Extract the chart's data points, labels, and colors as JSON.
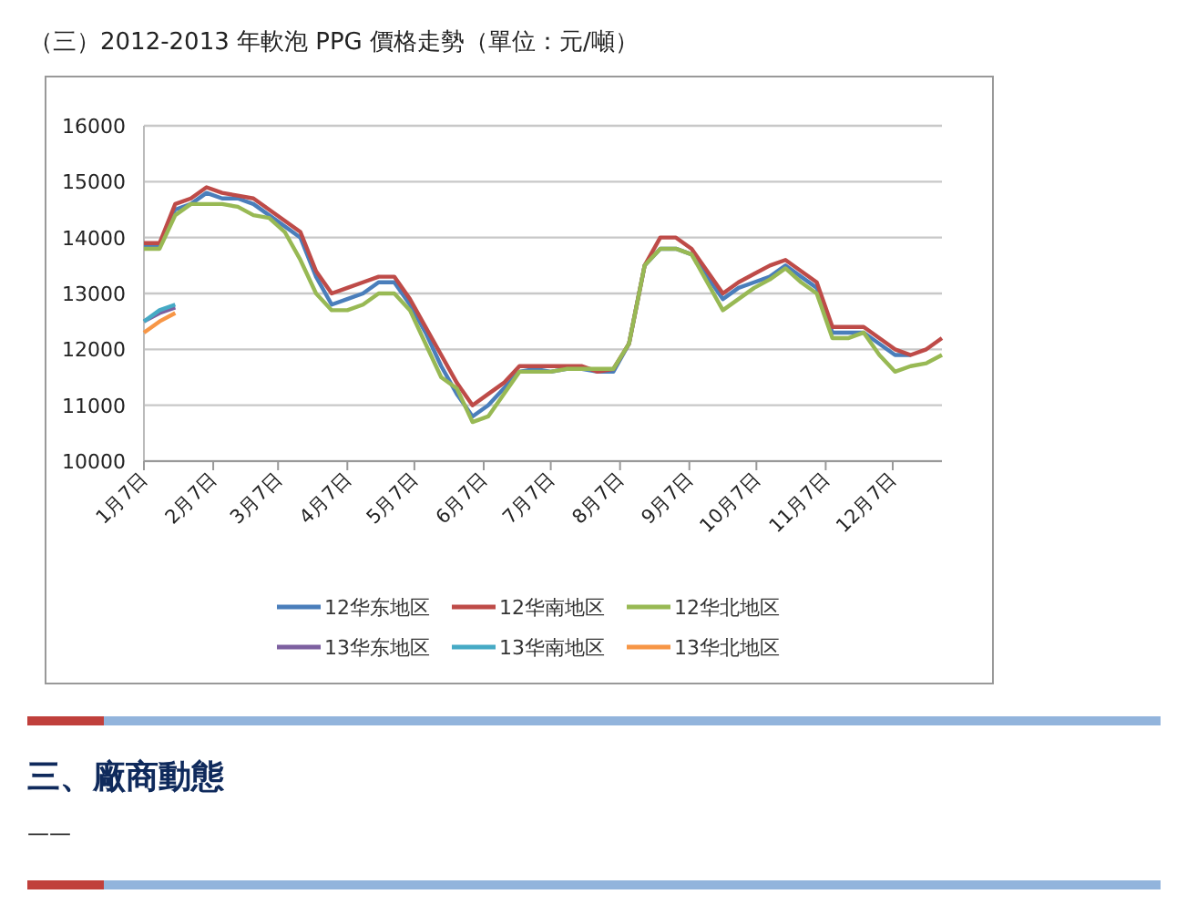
{
  "chart_data": {
    "type": "line",
    "title": "（三）2012-2013 年軟泡 PPG 價格走勢（單位：元/噸）",
    "x": [
      "--01-07",
      "--01-14",
      "--01-21",
      "--01-28",
      "--02-04",
      "--02-11",
      "--02-18",
      "--02-25",
      "--03-03",
      "--03-10",
      "--03-17",
      "--03-24",
      "--03-31",
      "--04-07",
      "--04-14",
      "--04-21",
      "--04-28",
      "--05-05",
      "--05-12",
      "--05-19",
      "--05-26",
      "--06-02",
      "--06-09",
      "--06-16",
      "--06-23",
      "--06-30",
      "--07-07",
      "--07-14",
      "--07-21",
      "--07-28",
      "--08-04",
      "--08-11",
      "--08-18",
      "--08-25",
      "--09-01",
      "--09-08",
      "--09-15",
      "--09-22",
      "--09-29",
      "--10-06",
      "--10-13",
      "--10-20",
      "--10-27",
      "--11-03",
      "--11-10",
      "--11-17",
      "--11-24",
      "--12-01",
      "--12-08",
      "--12-15",
      "--12-22",
      "--12-29"
    ],
    "xlim": [
      "--01-07",
      "--12-29"
    ],
    "xticks": [
      {
        "value": "--01-07",
        "label": "1月7日"
      },
      {
        "value": "--02-07",
        "label": "2月7日"
      },
      {
        "value": "--03-07",
        "label": "3月7日"
      },
      {
        "value": "--04-07",
        "label": "4月7日"
      },
      {
        "value": "--05-07",
        "label": "5月7日"
      },
      {
        "value": "--06-07",
        "label": "6月7日"
      },
      {
        "value": "--07-07",
        "label": "7月7日"
      },
      {
        "value": "--08-07",
        "label": "8月7日"
      },
      {
        "value": "--09-07",
        "label": "9月7日"
      },
      {
        "value": "--10-07",
        "label": "10月7日"
      },
      {
        "value": "--11-07",
        "label": "11月7日"
      },
      {
        "value": "--12-07",
        "label": "12月7日"
      }
    ],
    "ylim": [
      10000,
      16000
    ],
    "yticks": [
      10000,
      11000,
      12000,
      13000,
      14000,
      15000,
      16000
    ],
    "grid": "y",
    "legend": "bottom",
    "marker": "none",
    "line_style": "solid",
    "series": [
      {
        "name": "12华东地区",
        "color": "#4a7ebb",
        "values": [
          13850,
          13850,
          14500,
          14600,
          14800,
          14700,
          14700,
          14600,
          14400,
          14200,
          14000,
          13300,
          12800,
          12900,
          13000,
          13200,
          13200,
          12800,
          12300,
          11700,
          11200,
          10800,
          11000,
          11300,
          11600,
          11650,
          11600,
          11650,
          11650,
          11600,
          11600,
          12100,
          13500,
          13800,
          13800,
          13700,
          13300,
          12900,
          13100,
          13200,
          13300,
          13500,
          13300,
          13100,
          12300,
          12300,
          12300,
          12100,
          11900,
          11900,
          null,
          null
        ]
      },
      {
        "name": "12华南地区",
        "color": "#be4b48",
        "values": [
          13900,
          13900,
          14600,
          14700,
          14900,
          14800,
          14750,
          14700,
          14500,
          14300,
          14100,
          13400,
          13000,
          13100,
          13200,
          13300,
          13300,
          12900,
          12400,
          11900,
          11400,
          11000,
          11200,
          11400,
          11700,
          11700,
          11700,
          11700,
          11700,
          11600,
          11650,
          12100,
          13500,
          14000,
          14000,
          13800,
          13400,
          13000,
          13200,
          13350,
          13500,
          13600,
          13400,
          13200,
          12400,
          12400,
          12400,
          12200,
          12000,
          11900,
          12000,
          12200
        ]
      },
      {
        "name": "12华北地区",
        "color": "#98b954",
        "values": [
          13800,
          13800,
          14400,
          14600,
          14600,
          14600,
          14550,
          14400,
          14350,
          14100,
          13600,
          13000,
          12700,
          12700,
          12800,
          13000,
          13000,
          12700,
          12100,
          11500,
          11300,
          10700,
          10800,
          11200,
          11600,
          11600,
          11600,
          11650,
          11650,
          11650,
          11650,
          12100,
          13500,
          13800,
          13800,
          13700,
          13200,
          12700,
          12900,
          13100,
          13250,
          13450,
          13200,
          13000,
          12200,
          12200,
          12300,
          11900,
          11600,
          11700,
          11750,
          11900
        ]
      },
      {
        "name": "13华东地区",
        "color": "#7d60a0",
        "values": [
          12500,
          12650,
          12750,
          null,
          null,
          null,
          null,
          null,
          null,
          null,
          null,
          null,
          null,
          null,
          null,
          null,
          null,
          null,
          null,
          null,
          null,
          null,
          null,
          null,
          null,
          null,
          null,
          null,
          null,
          null,
          null,
          null,
          null,
          null,
          null,
          null,
          null,
          null,
          null,
          null,
          null,
          null,
          null,
          null,
          null,
          null,
          null,
          null,
          null,
          null,
          null,
          null
        ]
      },
      {
        "name": "13华南地区",
        "color": "#46aac5",
        "values": [
          12500,
          12700,
          12800,
          null,
          null,
          null,
          null,
          null,
          null,
          null,
          null,
          null,
          null,
          null,
          null,
          null,
          null,
          null,
          null,
          null,
          null,
          null,
          null,
          null,
          null,
          null,
          null,
          null,
          null,
          null,
          null,
          null,
          null,
          null,
          null,
          null,
          null,
          null,
          null,
          null,
          null,
          null,
          null,
          null,
          null,
          null,
          null,
          null,
          null,
          null,
          null,
          null
        ]
      },
      {
        "name": "13华北地区",
        "color": "#f79646",
        "values": [
          12300,
          12500,
          12650,
          null,
          null,
          null,
          null,
          null,
          null,
          null,
          null,
          null,
          null,
          null,
          null,
          null,
          null,
          null,
          null,
          null,
          null,
          null,
          null,
          null,
          null,
          null,
          null,
          null,
          null,
          null,
          null,
          null,
          null,
          null,
          null,
          null,
          null,
          null,
          null,
          null,
          null,
          null,
          null,
          null,
          null,
          null,
          null,
          null,
          null,
          null,
          null,
          null
        ]
      }
    ],
    "annotations": [
      "三、廠商動態",
      "——"
    ]
  }
}
